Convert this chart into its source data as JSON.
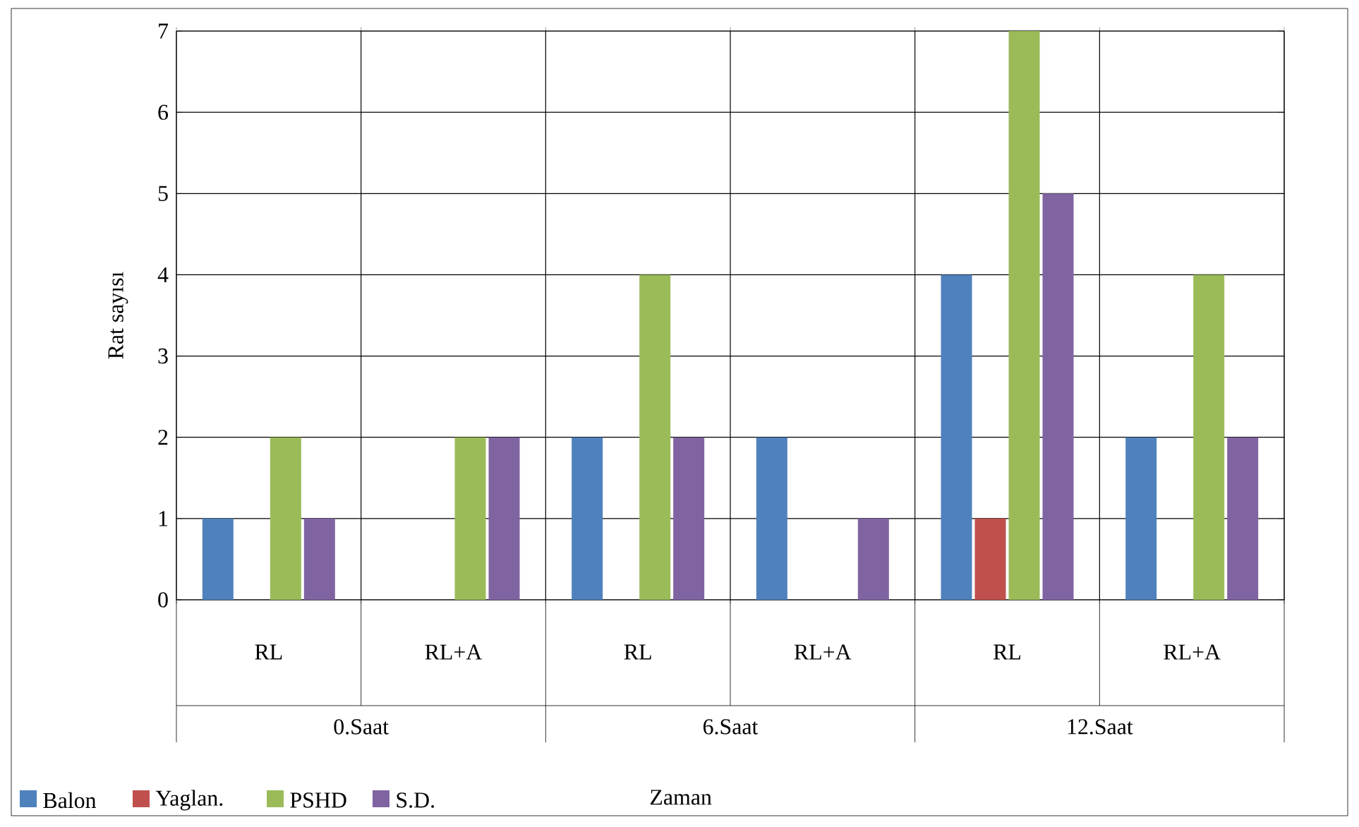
{
  "chart_data": {
    "type": "bar",
    "ylabel": "Rat sayısı",
    "categories": [
      "RL",
      "RL+A",
      "RL",
      "RL+A",
      "RL",
      "RL+A"
    ],
    "annotations": [
      "0.Saat",
      "6.Saat",
      "12.Saat",
      "Zaman"
    ],
    "series": [
      {
        "name": "Balon",
        "color": "#4f81bd",
        "values": [
          1,
          0,
          2,
          2,
          4,
          2
        ]
      },
      {
        "name": "Yaglan.",
        "color": "#c0504d",
        "values": [
          0,
          0,
          0,
          0,
          1,
          0
        ]
      },
      {
        "name": "PSHD",
        "color": "#9bbb59",
        "values": [
          2,
          2,
          4,
          0,
          7,
          4
        ]
      },
      {
        "name": "S.D.",
        "color": "#8064a2",
        "values": [
          1,
          2,
          2,
          1,
          5,
          2
        ]
      }
    ],
    "ylim": [
      0,
      7
    ],
    "yticks": [
      0,
      1,
      2,
      3,
      4,
      5,
      6,
      7
    ],
    "grid": true,
    "legend": "bottom"
  }
}
